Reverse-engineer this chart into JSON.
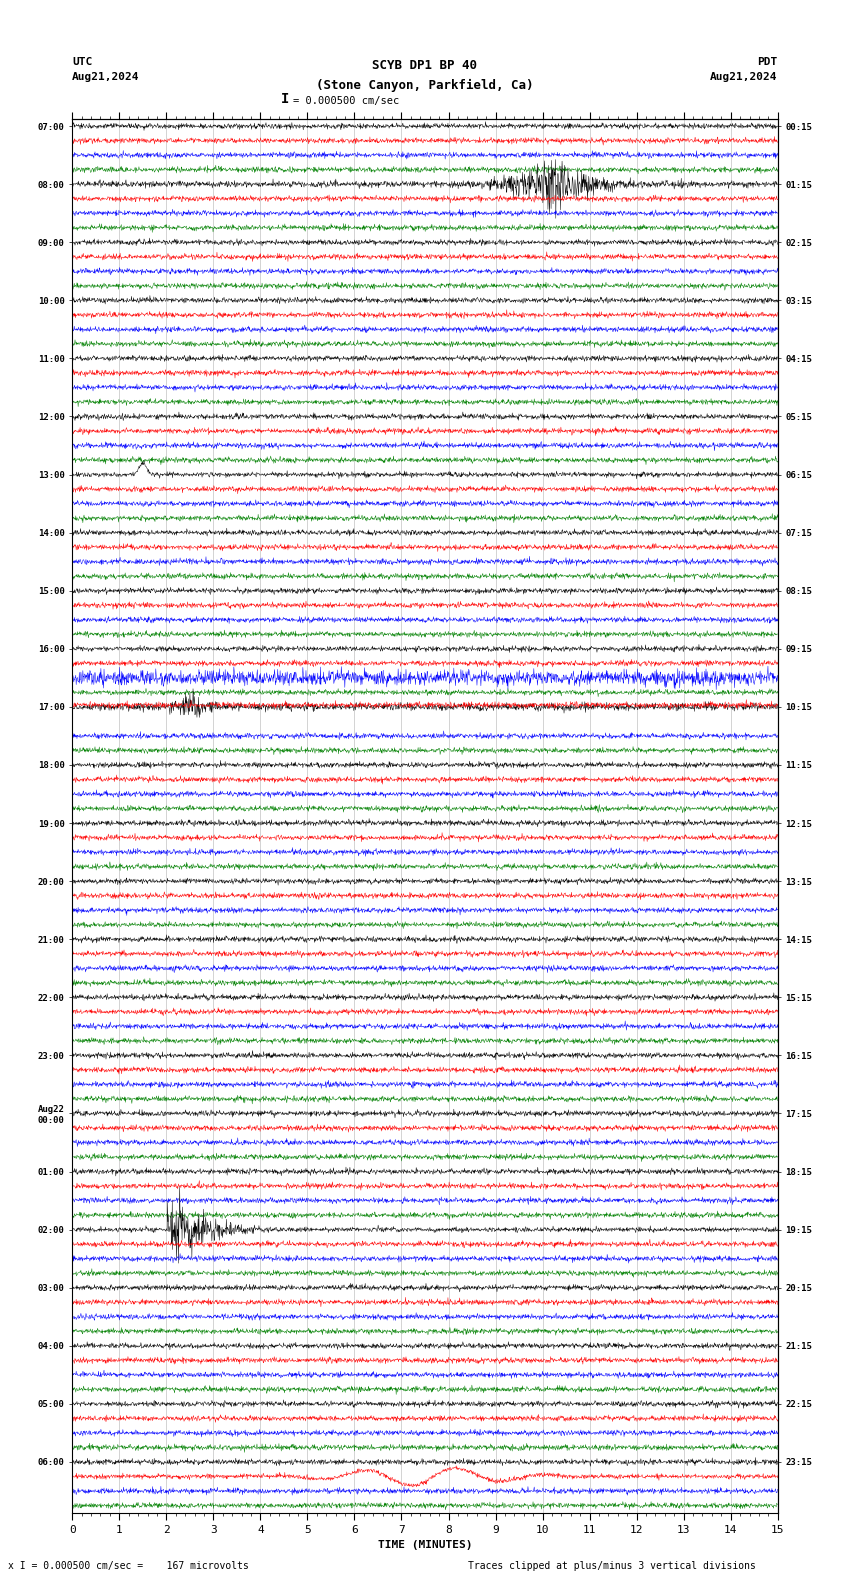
{
  "title_line1": "SCYB DP1 BP 40",
  "title_line2": "(Stone Canyon, Parkfield, Ca)",
  "scale_label": "= 0.000500 cm/sec",
  "utc_label": "UTC",
  "utc_date": "Aug21,2024",
  "pdt_label": "PDT",
  "pdt_date": "Aug21,2024",
  "xlabel": "TIME (MINUTES)",
  "bottom_left": "x I = 0.000500 cm/sec =    167 microvolts",
  "bottom_right": "Traces clipped at plus/minus 3 vertical divisions",
  "xlim": [
    0,
    15
  ],
  "x_ticks": [
    0,
    1,
    2,
    3,
    4,
    5,
    6,
    7,
    8,
    9,
    10,
    11,
    12,
    13,
    14,
    15
  ],
  "time_labels_left": [
    "07:00",
    "",
    "",
    "",
    "08:00",
    "",
    "",
    "",
    "09:00",
    "",
    "",
    "",
    "10:00",
    "",
    "",
    "",
    "11:00",
    "",
    "",
    "",
    "12:00",
    "",
    "",
    "",
    "13:00",
    "",
    "",
    "",
    "14:00",
    "",
    "",
    "",
    "15:00",
    "",
    "",
    "",
    "16:00",
    "",
    "",
    "",
    "17:00",
    "",
    "",
    "",
    "18:00",
    "",
    "",
    "",
    "19:00",
    "",
    "",
    "",
    "20:00",
    "",
    "",
    "",
    "21:00",
    "",
    "",
    "",
    "22:00",
    "",
    "",
    "",
    "23:00",
    "",
    "",
    "",
    "Aug22\n00:00",
    "",
    "",
    "",
    "01:00",
    "",
    "",
    "",
    "02:00",
    "",
    "",
    "",
    "03:00",
    "",
    "",
    "",
    "04:00",
    "",
    "",
    "",
    "05:00",
    "",
    "",
    "",
    "06:00",
    "",
    "",
    ""
  ],
  "time_labels_right": [
    "00:15",
    "",
    "",
    "",
    "01:15",
    "",
    "",
    "",
    "02:15",
    "",
    "",
    "",
    "03:15",
    "",
    "",
    "",
    "04:15",
    "",
    "",
    "",
    "05:15",
    "",
    "",
    "",
    "06:15",
    "",
    "",
    "",
    "07:15",
    "",
    "",
    "",
    "08:15",
    "",
    "",
    "",
    "09:15",
    "",
    "",
    "",
    "10:15",
    "",
    "",
    "",
    "11:15",
    "",
    "",
    "",
    "12:15",
    "",
    "",
    "",
    "13:15",
    "",
    "",
    "",
    "14:15",
    "",
    "",
    "",
    "15:15",
    "",
    "",
    "",
    "16:15",
    "",
    "",
    "",
    "17:15",
    "",
    "",
    "",
    "18:15",
    "",
    "",
    "",
    "19:15",
    "",
    "",
    "",
    "20:15",
    "",
    "",
    "",
    "21:15",
    "",
    "",
    "",
    "22:15",
    "",
    "",
    "",
    "23:15",
    "",
    "",
    ""
  ],
  "colors": [
    "black",
    "red",
    "blue",
    "green"
  ],
  "background_color": "white",
  "num_rows": 96,
  "fig_width": 8.5,
  "fig_height": 15.84,
  "dpi": 100
}
